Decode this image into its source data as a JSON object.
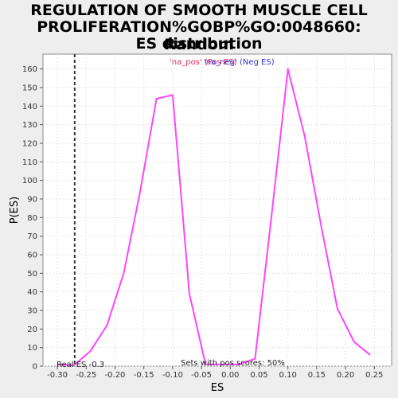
{
  "chart_data": {
    "type": "line",
    "title_lines": [
      "REGULATION OF SMOOTH MUSCLE CELL",
      "PROLIFERATION%GOBP%GO:0048660: Random",
      "ES distribution"
    ],
    "xlabel": "ES",
    "ylabel": "P(ES)",
    "xlim": [
      -0.325,
      0.28
    ],
    "ylim": [
      0,
      168
    ],
    "x_ticks": [
      -0.3,
      -0.25,
      -0.2,
      -0.15,
      -0.1,
      -0.05,
      0.0,
      0.05,
      0.1,
      0.15,
      0.2,
      0.25
    ],
    "x_tick_labels": [
      "-0.30",
      "-0.25",
      "-0.20",
      "-0.15",
      "-0.10",
      "-0.05",
      "0.00",
      "0.05",
      "0.10",
      "0.15",
      "0.20",
      "0.25"
    ],
    "y_ticks": [
      0,
      10,
      20,
      30,
      40,
      50,
      60,
      70,
      80,
      90,
      100,
      110,
      120,
      130,
      140,
      150,
      160
    ],
    "y_tick_labels": [
      "0",
      "10",
      "20",
      "30",
      "40",
      "50",
      "60",
      "70",
      "80",
      "90",
      "100",
      "110",
      "120",
      "130",
      "140",
      "150",
      "160"
    ],
    "grid": true,
    "series_color": "#ff44ff",
    "x": [
      -0.3,
      -0.271,
      -0.243,
      -0.214,
      -0.185,
      -0.157,
      -0.128,
      -0.1,
      -0.071,
      -0.043,
      -0.014,
      0.015,
      0.043,
      0.072,
      0.1,
      0.129,
      0.158,
      0.186,
      0.215,
      0.243
    ],
    "y": [
      1,
      0.5,
      8,
      22,
      50,
      93,
      144,
      146,
      39,
      1,
      1,
      1,
      4,
      82,
      160,
      124,
      75,
      31,
      13,
      6
    ],
    "real_es": -0.27,
    "real_es_label": "Real ES -0.3",
    "annotations": {
      "pos_label": "'na_pos' (Pos ES)",
      "neg_label": "'na_neg' (Neg ES)",
      "pos_color": "#e0285a",
      "neg_color": "#3333cc",
      "sets_label": "Sets with pos scores: 50%"
    }
  }
}
